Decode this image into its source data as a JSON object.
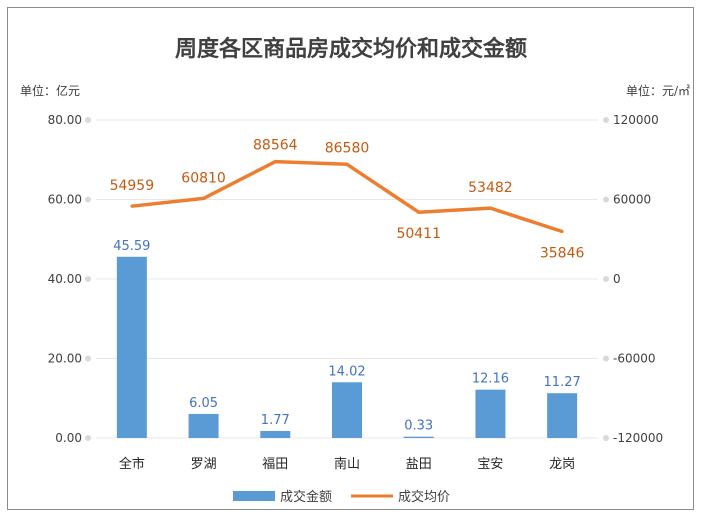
{
  "chart_data": {
    "type": "bar",
    "title": "周度各区商品房成交均价和成交金额",
    "left_unit": "单位：亿元",
    "right_unit": "单位：元/㎡",
    "categories": [
      "全市",
      "罗湖",
      "福田",
      "南山",
      "盐田",
      "宝安",
      "龙岗"
    ],
    "y_left": {
      "min": 0,
      "max": 80,
      "ticks": [
        "0.00",
        "20.00",
        "40.00",
        "60.00",
        "80.00"
      ]
    },
    "y_right": {
      "min": -120000,
      "max": 120000,
      "ticks": [
        "-120000",
        "-60000",
        "0",
        "60000",
        "120000"
      ]
    },
    "series": [
      {
        "name": "成交金额",
        "type": "bar",
        "axis": "left",
        "color": "#5b9bd5",
        "values": [
          45.59,
          6.05,
          1.77,
          14.02,
          0.33,
          12.16,
          11.27
        ],
        "labels": [
          "45.59",
          "6.05",
          "1.77",
          "14.02",
          "0.33",
          "12.16",
          "11.27"
        ]
      },
      {
        "name": "成交均价",
        "type": "line",
        "axis": "right",
        "color": "#ed7d31",
        "values": [
          54959,
          60810,
          88564,
          86580,
          50411,
          53482,
          35846
        ],
        "labels": [
          "54959",
          "60810",
          "88564",
          "86580",
          "50411",
          "53482",
          "35846"
        ]
      }
    ],
    "legend": "bottom",
    "grid": true
  }
}
